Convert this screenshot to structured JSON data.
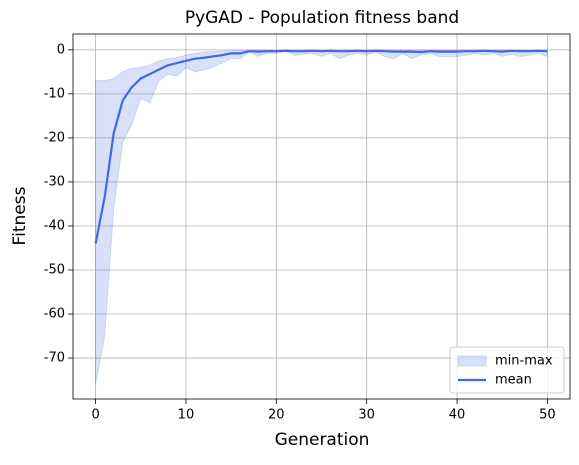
{
  "chart_data": {
    "type": "line",
    "title": "PyGAD - Population fitness band",
    "xlabel": "Generation",
    "ylabel": "Fitness",
    "x": [
      0,
      1,
      2,
      3,
      4,
      5,
      6,
      7,
      8,
      9,
      10,
      11,
      12,
      13,
      14,
      15,
      16,
      17,
      18,
      19,
      20,
      21,
      22,
      23,
      24,
      25,
      26,
      27,
      28,
      29,
      30,
      31,
      32,
      33,
      34,
      35,
      36,
      37,
      38,
      39,
      40,
      41,
      42,
      43,
      44,
      45,
      46,
      47,
      48,
      49,
      50
    ],
    "series": [
      {
        "name": "min-max",
        "color": "#4169e1",
        "max": [
          -7,
          -7,
          -6.5,
          -5,
          -4.2,
          -4,
          -3.5,
          -2.5,
          -2,
          -1.8,
          -1.2,
          -0.8,
          -0.5,
          -0.4,
          -0.3,
          -0.2,
          -0.1,
          -0.1,
          -0.1,
          -0.1,
          -0.1,
          -0.1,
          -0.1,
          -0.1,
          -0.1,
          -0.1,
          -0.1,
          -0.1,
          -0.1,
          -0.1,
          -0.1,
          -0.1,
          -0.1,
          -0.1,
          -0.1,
          -0.1,
          -0.1,
          -0.1,
          -0.1,
          -0.1,
          -0.1,
          -0.1,
          -0.1,
          -0.1,
          -0.1,
          -0.1,
          -0.1,
          -0.1,
          -0.1,
          -0.1,
          -0.1
        ],
        "min": [
          -76,
          -65,
          -36,
          -21,
          -17,
          -11,
          -12,
          -7,
          -5.5,
          -6,
          -4,
          -5,
          -4.5,
          -4,
          -3,
          -2,
          -2,
          -0.5,
          -1.5,
          -0.8,
          -0.8,
          -0.3,
          -1.2,
          -1,
          -0.8,
          -1.5,
          -0.8,
          -2,
          -1.2,
          -0.8,
          -1.2,
          -0.5,
          -1.5,
          -2,
          -0.8,
          -2,
          -1.2,
          -0.8,
          -1.5,
          -1.5,
          -1.5,
          -1.2,
          -0.8,
          -1.2,
          -0.8,
          -1.5,
          -1,
          -1.5,
          -1.2,
          -0.8,
          -1.5
        ]
      },
      {
        "name": "mean",
        "color": "#4169e1",
        "values": [
          -44,
          -33.5,
          -19,
          -11.5,
          -8.5,
          -6.5,
          -5.5,
          -4.5,
          -3.5,
          -3,
          -2.5,
          -2,
          -1.8,
          -1.5,
          -1.2,
          -0.8,
          -0.8,
          -0.3,
          -0.4,
          -0.3,
          -0.3,
          -0.2,
          -0.3,
          -0.3,
          -0.2,
          -0.3,
          -0.2,
          -0.3,
          -0.3,
          -0.2,
          -0.3,
          -0.2,
          -0.3,
          -0.4,
          -0.4,
          -0.4,
          -0.5,
          -0.3,
          -0.4,
          -0.4,
          -0.4,
          -0.3,
          -0.3,
          -0.2,
          -0.3,
          -0.4,
          -0.2,
          -0.3,
          -0.3,
          -0.2,
          -0.3
        ]
      }
    ],
    "xlim": [
      -2.5,
      52.5
    ],
    "ylim": [
      -79.3,
      3.6
    ],
    "xticks": [
      0,
      10,
      20,
      30,
      40,
      50
    ],
    "yticks": [
      0,
      -10,
      -20,
      -30,
      -40,
      -50,
      -60,
      -70
    ],
    "grid": true,
    "legend": "lower right"
  }
}
